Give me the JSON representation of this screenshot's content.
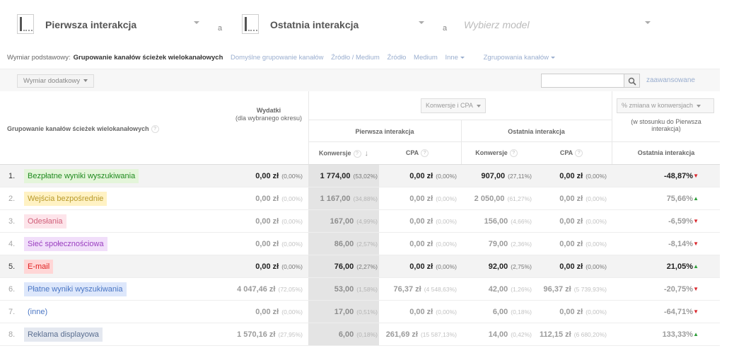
{
  "models": {
    "first_name": "Pierwsza interakcja",
    "separator": "a",
    "last_name": "Ostatnia interakcja",
    "third_placeholder": "Wybierz model"
  },
  "dimensions": {
    "label": "Wymiar podstawowy:",
    "active": "Grupowanie kanałów ścieżek wielokanałowych",
    "links": [
      "Domyślne grupowanie kanałów",
      "Źródło / Medium",
      "Źródło",
      "Medium",
      "Inne",
      "Zgrupowania kanałów"
    ]
  },
  "toolbar": {
    "secondary_dimension": "Wymiar dodatkowy",
    "search_value": "",
    "advanced": "zaawansowane"
  },
  "headers": {
    "channel_group": "Grupowanie kanałów ścieżek wielokanałowych",
    "spend": "Wydatki",
    "spend_sub": "(dla wybranego okresu)",
    "metric_select": "Konwersje i CPA",
    "first": "Pierwsza interakcja",
    "last": "Ostatnia interakcja",
    "conversions": "Konwersje",
    "cpa": "CPA",
    "change_select": "% zmiana w konwersjach",
    "change_sub": "(w stosunku do Pierwsza interakcja)",
    "change_col": "Ostatnia interakcja"
  },
  "colors": {
    "up": "#2e9e3a",
    "down": "#d9262c",
    "highlight": "#f3f3f3"
  },
  "rows": [
    {
      "num": "1.",
      "channel": "Bezpłatne wyniki wyszukiwania",
      "chan_bg": "#e4f5da",
      "chan_fg": "#1e8a1e",
      "spend": "0,00 zł",
      "spend_pct": "(0,00%)",
      "conv_first": "1 774,00",
      "conv_first_pct": "(53,02%)",
      "cpa_first": "0,00 zł",
      "cpa_first_pct": "(0,00%)",
      "conv_last": "907,00",
      "conv_last_pct": "(27,11%)",
      "cpa_last": "0,00 zł",
      "cpa_last_pct": "(0,00%)",
      "change": "-48,87%",
      "dir": "down"
    },
    {
      "num": "2.",
      "channel": "Wejścia bezpośrednie",
      "chan_bg": "#fff2c4",
      "chan_fg": "#b89a2a",
      "spend": "0,00 zł",
      "spend_pct": "(0,00%)",
      "conv_first": "1 167,00",
      "conv_first_pct": "(34,88%)",
      "cpa_first": "0,00 zł",
      "cpa_first_pct": "(0,00%)",
      "conv_last": "2 050,00",
      "conv_last_pct": "(61,27%)",
      "cpa_last": "0,00 zł",
      "cpa_last_pct": "(0,00%)",
      "change": "75,66%",
      "dir": "up"
    },
    {
      "num": "3.",
      "channel": "Odesłania",
      "chan_bg": "#fde4ea",
      "chan_fg": "#d0607a",
      "spend": "0,00 zł",
      "spend_pct": "(0,00%)",
      "conv_first": "167,00",
      "conv_first_pct": "(4,99%)",
      "cpa_first": "0,00 zł",
      "cpa_first_pct": "(0,00%)",
      "conv_last": "156,00",
      "conv_last_pct": "(4,66%)",
      "cpa_last": "0,00 zł",
      "cpa_last_pct": "(0,00%)",
      "change": "-6,59%",
      "dir": "down"
    },
    {
      "num": "4.",
      "channel": "Sieć społecznościowa",
      "chan_bg": "#f1defa",
      "chan_fg": "#9a3fc0",
      "spend": "0,00 zł",
      "spend_pct": "(0,00%)",
      "conv_first": "86,00",
      "conv_first_pct": "(2,57%)",
      "cpa_first": "0,00 zł",
      "cpa_first_pct": "(0,00%)",
      "conv_last": "79,00",
      "conv_last_pct": "(2,36%)",
      "cpa_last": "0,00 zł",
      "cpa_last_pct": "(0,00%)",
      "change": "-8,14%",
      "dir": "down"
    },
    {
      "num": "5.",
      "channel": "E-mail",
      "chan_bg": "#ffd6d6",
      "chan_fg": "#e02020",
      "spend": "0,00 zł",
      "spend_pct": "(0,00%)",
      "conv_first": "76,00",
      "conv_first_pct": "(2,27%)",
      "cpa_first": "0,00 zł",
      "cpa_first_pct": "(0,00%)",
      "conv_last": "92,00",
      "conv_last_pct": "(2,75%)",
      "cpa_last": "0,00 zł",
      "cpa_last_pct": "(0,00%)",
      "change": "21,05%",
      "dir": "up"
    },
    {
      "num": "6.",
      "channel": "Płatne wyniki wyszukiwania",
      "chan_bg": "#dde7fb",
      "chan_fg": "#4a76c4",
      "spend": "4 047,46 zł",
      "spend_pct": "(72,05%)",
      "conv_first": "53,00",
      "conv_first_pct": "(1,58%)",
      "cpa_first": "76,37 zł",
      "cpa_first_pct": "(4 548,63%)",
      "conv_last": "42,00",
      "conv_last_pct": "(1,26%)",
      "cpa_last": "96,37 zł",
      "cpa_last_pct": "(5 739,93%)",
      "change": "-20,75%",
      "dir": "down"
    },
    {
      "num": "7.",
      "channel": "(inne)",
      "chan_bg": "transparent",
      "chan_fg": "#4a76c4",
      "spend": "0,00 zł",
      "spend_pct": "(0,00%)",
      "conv_first": "17,00",
      "conv_first_pct": "(0,51%)",
      "cpa_first": "0,00 zł",
      "cpa_first_pct": "(0,00%)",
      "conv_last": "6,00",
      "conv_last_pct": "(0,18%)",
      "cpa_last": "0,00 zł",
      "cpa_last_pct": "(0,00%)",
      "change": "-64,71%",
      "dir": "down"
    },
    {
      "num": "8.",
      "channel": "Reklama displayowa",
      "chan_bg": "#e4e8f0",
      "chan_fg": "#5a6e90",
      "spend": "1 570,16 zł",
      "spend_pct": "(27,95%)",
      "conv_first": "6,00",
      "conv_first_pct": "(0,18%)",
      "cpa_first": "261,69 zł",
      "cpa_first_pct": "(15 587,13%)",
      "conv_last": "14,00",
      "conv_last_pct": "(0,42%)",
      "cpa_last": "112,15 zł",
      "cpa_last_pct": "(6 680,20%)",
      "change": "133,33%",
      "dir": "up"
    }
  ]
}
